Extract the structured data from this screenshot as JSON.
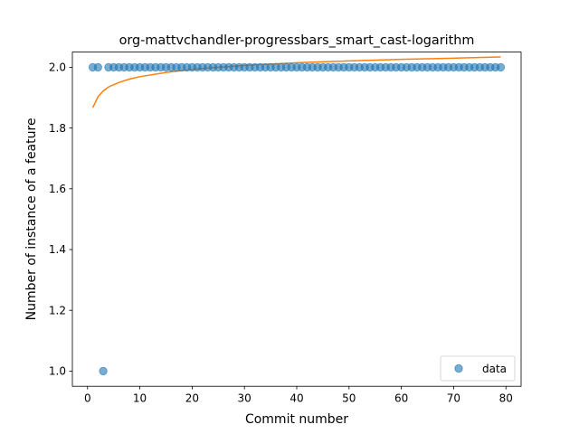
{
  "chart_data": {
    "type": "scatter",
    "title": "org-mattvchandler-progressbars_smart_cast-logarithm",
    "xlabel": "Commit number",
    "ylabel": "Number of instance of a feature",
    "xlim": [
      -2.9,
      82.9
    ],
    "ylim": [
      0.95,
      2.05
    ],
    "xticks": [
      0,
      10,
      20,
      30,
      40,
      50,
      60,
      70,
      80
    ],
    "yticks": [
      1.0,
      1.2,
      1.4,
      1.6,
      1.8,
      2.0
    ],
    "ytick_labels": [
      "1.0",
      "1.2",
      "1.4",
      "1.6",
      "1.8",
      "2.0"
    ],
    "grid": false,
    "legend_position": "lower-right",
    "colors": {
      "data": "#1f77b4",
      "fit": "#ff7f0e"
    },
    "series": [
      {
        "name": "data",
        "kind": "scatter",
        "x": [
          1,
          2,
          3,
          4,
          5,
          6,
          7,
          8,
          9,
          10,
          11,
          12,
          13,
          14,
          15,
          16,
          17,
          18,
          19,
          20,
          21,
          22,
          23,
          24,
          25,
          26,
          27,
          28,
          29,
          30,
          31,
          32,
          33,
          34,
          35,
          36,
          37,
          38,
          39,
          40,
          41,
          42,
          43,
          44,
          45,
          46,
          47,
          48,
          49,
          50,
          51,
          52,
          53,
          54,
          55,
          56,
          57,
          58,
          59,
          60,
          61,
          62,
          63,
          64,
          65,
          66,
          67,
          68,
          69,
          70,
          71,
          72,
          73,
          74,
          75,
          76,
          77,
          78,
          79
        ],
        "y": [
          2,
          2,
          1,
          2,
          2,
          2,
          2,
          2,
          2,
          2,
          2,
          2,
          2,
          2,
          2,
          2,
          2,
          2,
          2,
          2,
          2,
          2,
          2,
          2,
          2,
          2,
          2,
          2,
          2,
          2,
          2,
          2,
          2,
          2,
          2,
          2,
          2,
          2,
          2,
          2,
          2,
          2,
          2,
          2,
          2,
          2,
          2,
          2,
          2,
          2,
          2,
          2,
          2,
          2,
          2,
          2,
          2,
          2,
          2,
          2,
          2,
          2,
          2,
          2,
          2,
          2,
          2,
          2,
          2,
          2,
          2,
          2,
          2,
          2,
          2,
          2,
          2,
          2,
          2
        ]
      },
      {
        "kind": "line",
        "x": [
          1,
          2,
          3,
          4,
          6,
          8,
          10,
          15,
          20,
          25,
          30,
          40,
          50,
          60,
          70,
          79
        ],
        "y": [
          1.867,
          1.903,
          1.922,
          1.935,
          1.95,
          1.961,
          1.969,
          1.983,
          1.993,
          2.0,
          2.006,
          2.015,
          2.021,
          2.026,
          2.03,
          2.034
        ]
      }
    ]
  }
}
